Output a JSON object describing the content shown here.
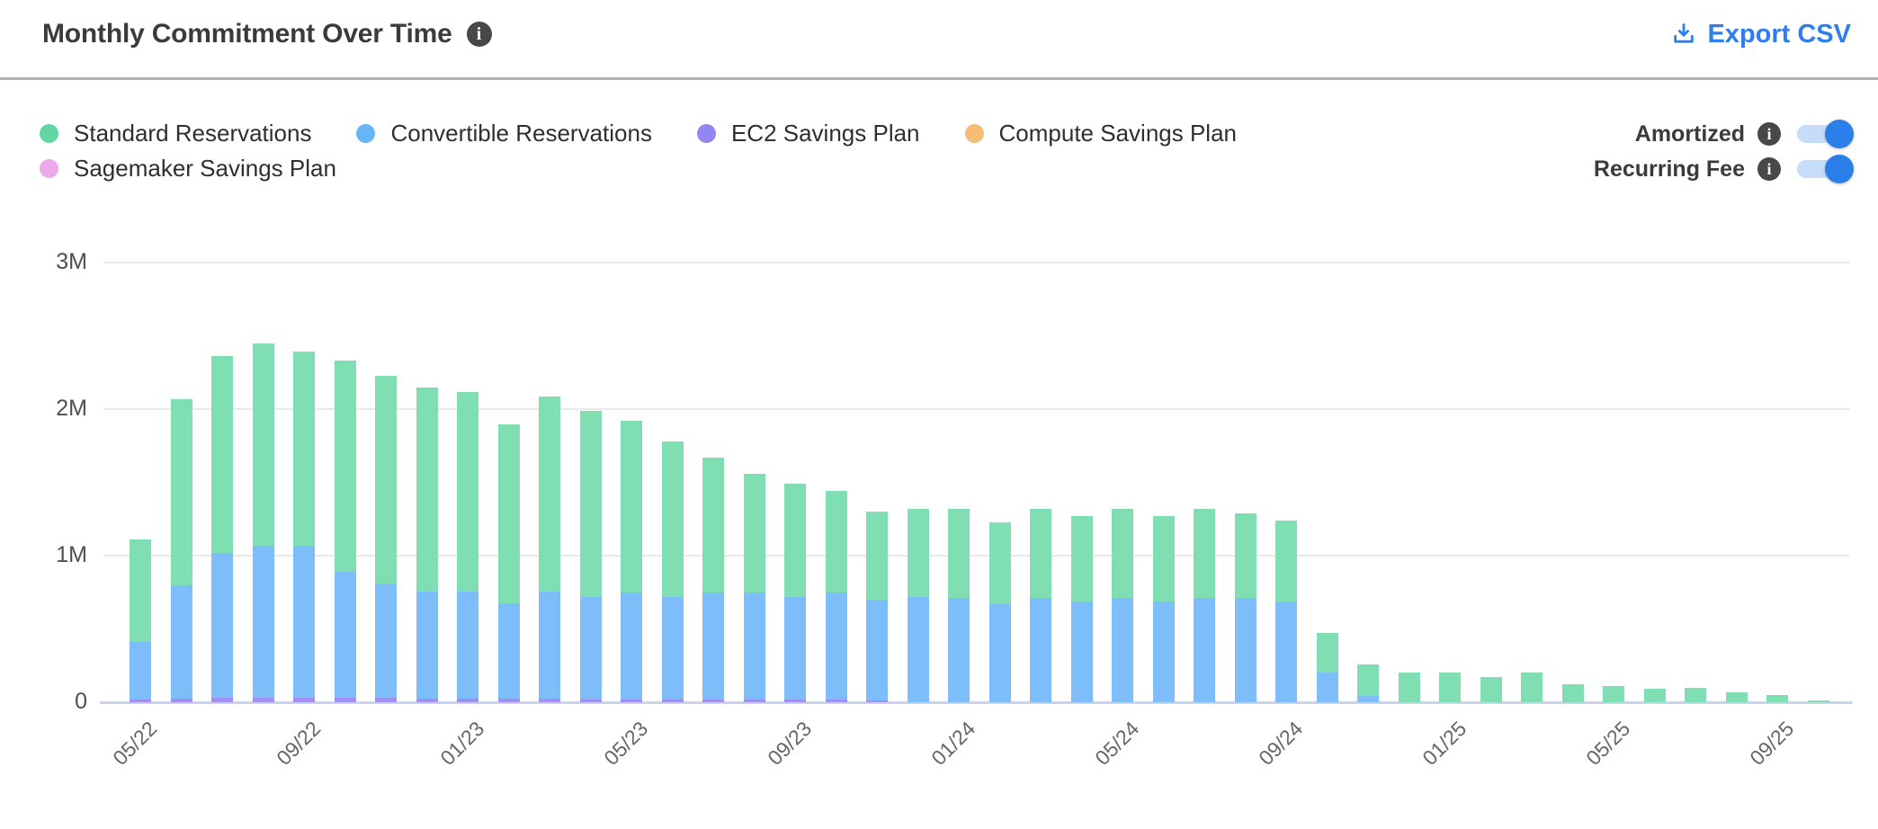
{
  "header": {
    "title": "Monthly Commitment Over Time",
    "export_label": "Export CSV"
  },
  "legend": {
    "items": [
      {
        "label": "Standard Reservations",
        "color": "#63d6a3"
      },
      {
        "label": "Convertible Reservations",
        "color": "#66b5f7"
      },
      {
        "label": "EC2 Savings Plan",
        "color": "#9287f2"
      },
      {
        "label": "Compute Savings Plan",
        "color": "#f5be74"
      },
      {
        "label": "Sagemaker Savings Plan",
        "color": "#eca9ec"
      }
    ]
  },
  "toggles": [
    {
      "label": "Amortized",
      "state": "on"
    },
    {
      "label": "Recurring Fee",
      "state": "on"
    }
  ],
  "chart_data": {
    "type": "bar",
    "stacked": true,
    "values_unit": "millions",
    "ylim": [
      0,
      3
    ],
    "y_ticks": [
      {
        "value": 0,
        "label": "0"
      },
      {
        "value": 1,
        "label": "1M"
      },
      {
        "value": 2,
        "label": "2M"
      },
      {
        "value": 3,
        "label": "3M"
      }
    ],
    "x": [
      "05/22",
      "06/22",
      "07/22",
      "08/22",
      "09/22",
      "10/22",
      "11/22",
      "12/22",
      "01/23",
      "02/23",
      "03/23",
      "04/23",
      "05/23",
      "06/23",
      "07/23",
      "08/23",
      "09/23",
      "10/23",
      "11/23",
      "12/23",
      "01/24",
      "02/24",
      "03/24",
      "04/24",
      "05/24",
      "06/24",
      "07/24",
      "08/24",
      "09/24",
      "10/24",
      "11/24",
      "12/24",
      "01/25",
      "02/25",
      "03/25",
      "04/25",
      "05/25",
      "06/25",
      "07/25",
      "08/25",
      "09/25",
      "10/25"
    ],
    "x_tick_labels": [
      "05/22",
      "09/22",
      "01/23",
      "05/23",
      "09/23",
      "01/24",
      "05/24",
      "09/24",
      "01/25",
      "05/25",
      "09/25"
    ],
    "x_tick_every": 4,
    "grid": true,
    "legend_position": "top",
    "stack_order_bottom_to_top": [
      "EC2 Savings Plan",
      "Convertible Reservations",
      "Standard Reservations"
    ],
    "series": [
      {
        "name": "Standard Reservations",
        "color": "#7fdfb2",
        "values": [
          0.7,
          1.27,
          1.34,
          1.38,
          1.32,
          1.44,
          1.42,
          1.39,
          1.36,
          1.22,
          1.33,
          1.27,
          1.17,
          1.06,
          0.92,
          0.81,
          0.77,
          0.69,
          0.6,
          0.6,
          0.61,
          0.56,
          0.61,
          0.58,
          0.61,
          0.58,
          0.61,
          0.58,
          0.55,
          0.27,
          0.22,
          0.2,
          0.2,
          0.17,
          0.2,
          0.12,
          0.11,
          0.09,
          0.1,
          0.07,
          0.05,
          0.015
        ]
      },
      {
        "name": "Convertible Reservations",
        "color": "#7dbdfa",
        "values": [
          0.39,
          0.77,
          0.99,
          1.04,
          1.04,
          0.86,
          0.78,
          0.73,
          0.73,
          0.65,
          0.73,
          0.7,
          0.73,
          0.7,
          0.73,
          0.73,
          0.7,
          0.73,
          0.69,
          0.72,
          0.71,
          0.67,
          0.71,
          0.69,
          0.71,
          0.69,
          0.71,
          0.71,
          0.69,
          0.2,
          0.04,
          0,
          0,
          0,
          0,
          0,
          0,
          0,
          0,
          0,
          0,
          0
        ]
      },
      {
        "name": "EC2 Savings Plan",
        "color": "#a18ff4",
        "values": [
          0.02,
          0.025,
          0.03,
          0.03,
          0.03,
          0.03,
          0.03,
          0.025,
          0.025,
          0.025,
          0.025,
          0.02,
          0.02,
          0.02,
          0.02,
          0.02,
          0.02,
          0.02,
          0.01,
          0,
          0,
          0,
          0,
          0,
          0,
          0,
          0,
          0,
          0,
          0,
          0,
          0,
          0,
          0,
          0,
          0,
          0,
          0,
          0,
          0,
          0,
          0
        ]
      },
      {
        "name": "Compute Savings Plan",
        "color": "#f5be74",
        "values": [
          0,
          0,
          0,
          0,
          0,
          0,
          0,
          0,
          0,
          0,
          0,
          0,
          0,
          0,
          0,
          0,
          0,
          0,
          0,
          0,
          0,
          0,
          0,
          0,
          0,
          0,
          0,
          0,
          0,
          0,
          0,
          0,
          0,
          0,
          0,
          0,
          0,
          0,
          0,
          0,
          0,
          0
        ]
      },
      {
        "name": "Sagemaker Savings Plan",
        "color": "#eca9ec",
        "values": [
          0,
          0,
          0,
          0,
          0,
          0,
          0,
          0,
          0,
          0,
          0,
          0,
          0,
          0,
          0,
          0,
          0,
          0,
          0,
          0,
          0,
          0,
          0,
          0,
          0,
          0,
          0,
          0,
          0,
          0,
          0,
          0,
          0,
          0,
          0,
          0,
          0,
          0,
          0,
          0,
          0,
          0
        ]
      }
    ]
  }
}
